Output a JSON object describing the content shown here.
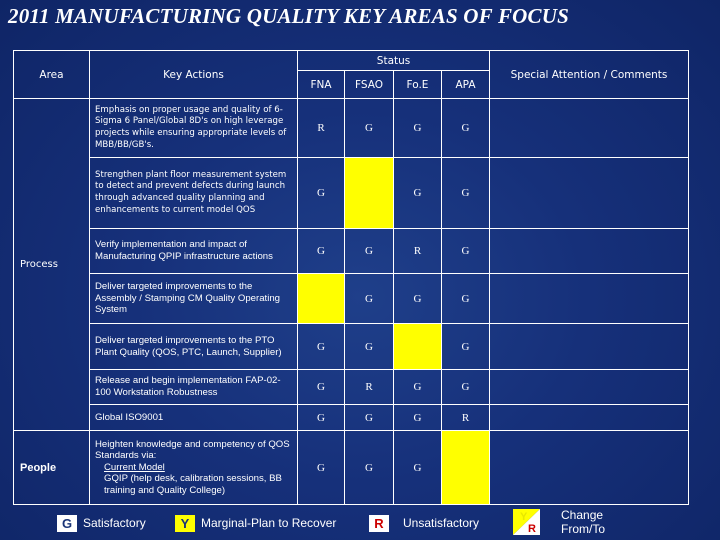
{
  "title": "2011 MANUFACTURING QUALITY KEY AREAS OF FOCUS",
  "headers": {
    "area": "Area",
    "key_actions": "Key Actions",
    "status": "Status",
    "status_cols": [
      "FNA",
      "FSAO",
      "Fo.E",
      "APA"
    ],
    "comments": "Special Attention / Comments"
  },
  "rows": [
    {
      "area": "Process",
      "action": "Emphasis on proper usage and quality of 6-Sigma 6 Panel/Global 8D's on high leverage projects while ensuring appropriate levels of MBB/BB/GB's.",
      "status": [
        "R",
        "G",
        "G",
        "G"
      ]
    },
    {
      "area": "",
      "action": "Strengthen plant floor measurement system to detect and prevent defects during launch through advanced quality planning and enhancements to current model QOS",
      "status": [
        "G",
        "Y",
        "G",
        "G"
      ]
    },
    {
      "area": "",
      "action": "Verify implementation and impact of Manufacturing QPIP infrastructure actions",
      "status": [
        "G",
        "G",
        "R",
        "G"
      ]
    },
    {
      "area": "",
      "action": "Deliver targeted improvements to the Assembly / Stamping CM Quality Operating System",
      "status": [
        "Y",
        "G",
        "G",
        "G"
      ]
    },
    {
      "area": "",
      "action": "Deliver targeted improvements to the PTO Plant Quality (QOS, PTC, Launch, Supplier)",
      "status": [
        "G",
        "G",
        "Y",
        "G"
      ]
    },
    {
      "area": "",
      "action": "Release and begin implementation FAP-02-100 Workstation Robustness",
      "status": [
        "G",
        "R",
        "G",
        "G"
      ]
    },
    {
      "area": "",
      "action": "Global ISO9001",
      "status": [
        "G",
        "G",
        "G",
        "R"
      ]
    },
    {
      "area": "People",
      "action_intro": "Heighten knowledge and competency of QOS Standards via:",
      "action_link": "Current Model",
      "action_rest": "GQIP (help desk, calibration sessions, BB training and Quality College)",
      "status": [
        "G",
        "G",
        "G",
        "Y"
      ]
    }
  ],
  "legend": {
    "g_letter": "G",
    "g_label": "Satisfactory",
    "y_letter": "Y",
    "y_label": "Marginal-Plan to Recover",
    "r_letter": "R",
    "r_label": "Unsatisfactory",
    "change_top": "Y",
    "change_bottom": "R",
    "change_label_1": "Change",
    "change_label_2": "From/To"
  },
  "colors": {
    "background": "#16307a",
    "yellow": "#ffff00",
    "grid": "#ffffff"
  }
}
